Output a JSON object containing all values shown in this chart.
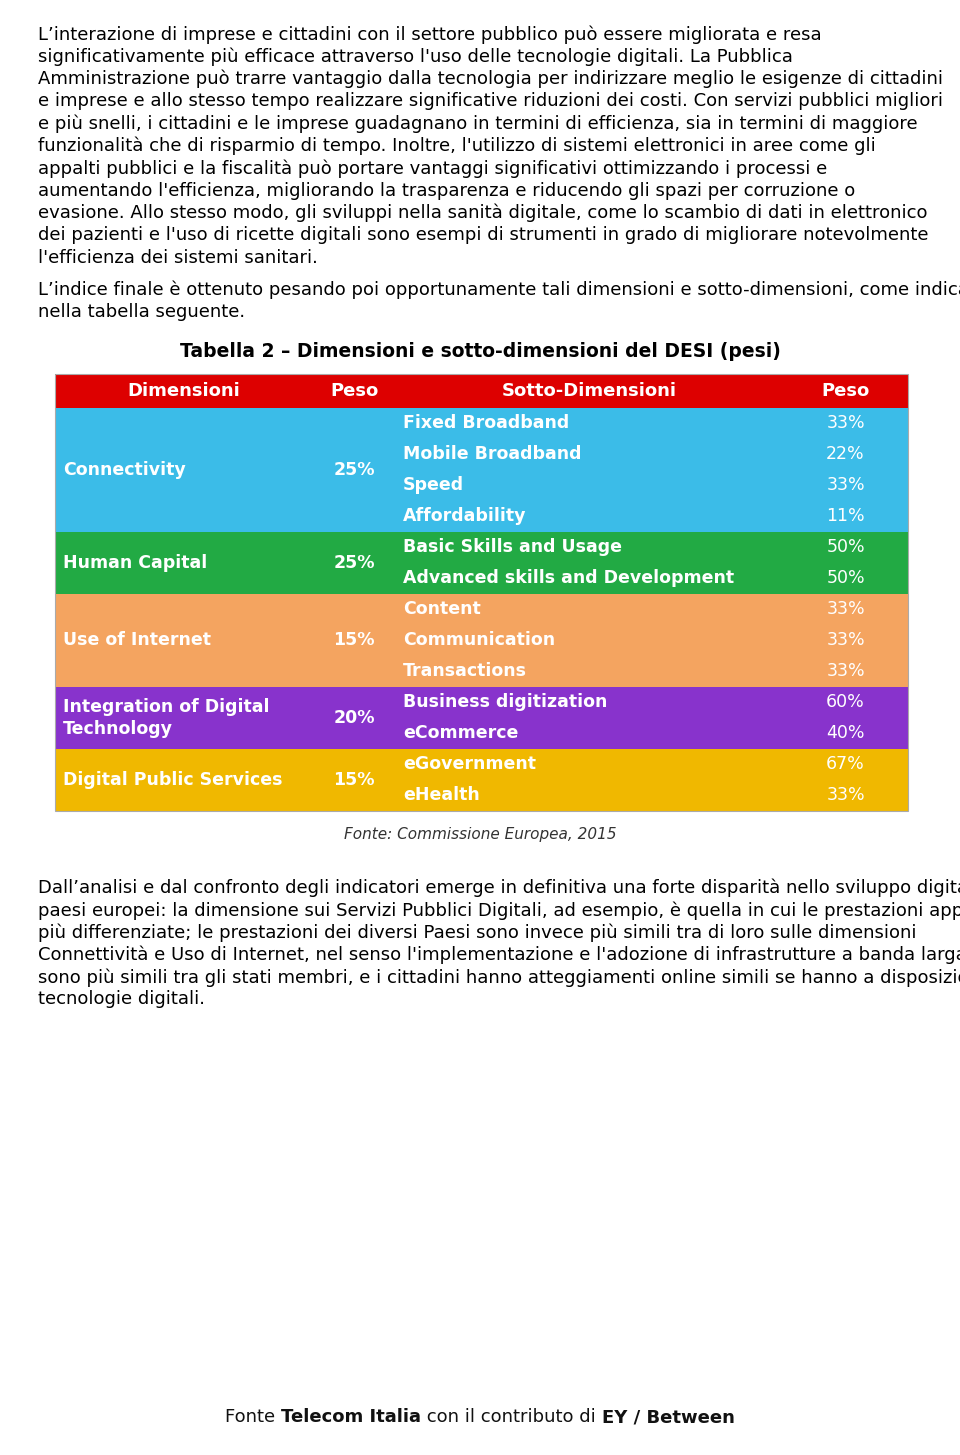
{
  "para1_lines": [
    "L’interazione di imprese e cittadini con il settore pubblico può essere migliorata e resa",
    "significativamente più efficace attraverso l'uso delle tecnologie digitali. La Pubblica",
    "Amministrazione può trarre vantaggio dalla tecnologia per indirizzare meglio le esigenze di cittadini",
    "e imprese e allo stesso tempo realizzare significative riduzioni dei costi. Con servizi pubblici migliori",
    "e più snelli, i cittadini e le imprese guadagnano in termini di efficienza, sia in termini di maggiore",
    "funzionalità che di risparmio di tempo. Inoltre, l'utilizzo di sistemi elettronici in aree come gli",
    "appalti pubblici e la fiscalità può portare vantaggi significativi ottimizzando i processi e",
    "aumentando l'efficienza, migliorando la trasparenza e riducendo gli spazi per corruzione o",
    "evasione. Allo stesso modo, gli sviluppi nella sanità digitale, come lo scambio di dati in elettronico",
    "dei pazienti e l'uso di ricette digitali sono esempi di strumenti in grado di migliorare notevolmente",
    "l'efficienza dei sistemi sanitari."
  ],
  "para2_lines": [
    "L’indice finale è ottenuto pesando poi opportunamente tali dimensioni e sotto-dimensioni, come indicato",
    "nella tabella seguente."
  ],
  "table_title": "Tabella 2 – Dimensioni e sotto-dimensioni del DESI (pesi)",
  "header": [
    "Dimensioni",
    "Peso",
    "Sotto-Dimensioni",
    "Peso"
  ],
  "header_bg": "#dd0000",
  "header_fg": "#ffffff",
  "rows": [
    {
      "dimension": "Connectivity",
      "dimension2": "",
      "peso_dim": "25%",
      "sub_dimensions": [
        "Fixed Broadband",
        "Mobile Broadband",
        "Speed",
        "Affordability"
      ],
      "sub_weights": [
        "33%",
        "22%",
        "33%",
        "11%"
      ],
      "color": "#3bbce8",
      "text_color": "#ffffff"
    },
    {
      "dimension": "Human Capital",
      "dimension2": "",
      "peso_dim": "25%",
      "sub_dimensions": [
        "Basic Skills and Usage",
        "Advanced skills and Development"
      ],
      "sub_weights": [
        "50%",
        "50%"
      ],
      "color": "#22aa44",
      "text_color": "#ffffff"
    },
    {
      "dimension": "Use of Internet",
      "dimension2": "",
      "peso_dim": "15%",
      "sub_dimensions": [
        "Content",
        "Communication",
        "Transactions"
      ],
      "sub_weights": [
        "33%",
        "33%",
        "33%"
      ],
      "color": "#f4a460",
      "text_color": "#ffffff"
    },
    {
      "dimension": "Integration of Digital",
      "dimension2": "Technology",
      "peso_dim": "20%",
      "sub_dimensions": [
        "Business digitization",
        "eCommerce"
      ],
      "sub_weights": [
        "60%",
        "40%"
      ],
      "color": "#8833cc",
      "text_color": "#ffffff"
    },
    {
      "dimension": "Digital Public Services",
      "dimension2": "",
      "peso_dim": "15%",
      "sub_dimensions": [
        "eGovernment",
        "eHealth"
      ],
      "sub_weights": [
        "67%",
        "33%"
      ],
      "color": "#f0b800",
      "text_color": "#ffffff"
    }
  ],
  "fonte_table": "Fonte: Commissione Europea, 2015",
  "para3_lines": [
    "Dall’analisi e dal confronto degli indicatori emerge in definitiva una forte disparità nello sviluppo digitale dei",
    "paesi europei: la dimensione sui Servizi Pubblici Digitali, ad esempio, è quella in cui le prestazioni appaiono",
    "più differenziate; le prestazioni dei diversi Paesi sono invece più simili tra di loro sulle dimensioni",
    "Connettività e Uso di Internet, nel senso l'implementazione e l'adozione di infrastrutture a banda larga",
    "sono più simili tra gli stati membri, e i cittadini hanno atteggiamenti online simili se hanno a disposizione le",
    "tecnologie digitali."
  ],
  "footer_normal": "Fonte ",
  "footer_bold1": "Telecom Italia",
  "footer_mid": " con il contributo di ",
  "footer_bold2": "EY / Between",
  "bg_color": "#ffffff",
  "text_color": "#000000"
}
